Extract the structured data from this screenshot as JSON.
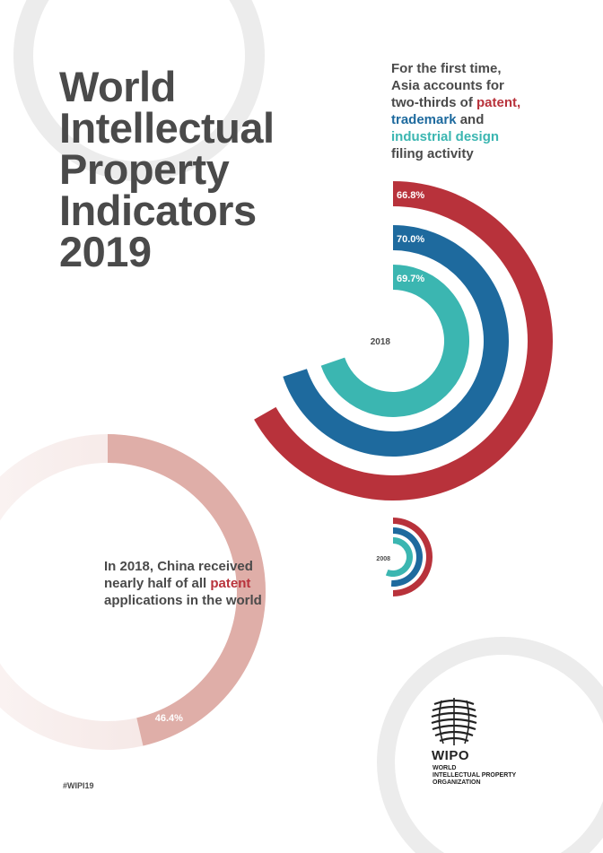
{
  "title": {
    "lines": [
      "World",
      "Intellectual",
      "Property",
      "Indicators",
      "2019"
    ]
  },
  "tagline": {
    "line1": "For the first time,",
    "line2": "Asia accounts for",
    "line3_prefix": "two-thirds of ",
    "patent": "patent,",
    "trademark": "trademark",
    "and": " and",
    "industrial_design": "industrial design",
    "last": "filing activity"
  },
  "china": {
    "line1": "In 2018, China received",
    "line2": "nearly half of all ",
    "patent": "patent",
    "line3": "applications in the world",
    "value_label": "46.4%",
    "value": 46.4
  },
  "hashtag": "#WIPI19",
  "wipo": {
    "name": "WIPO",
    "full": [
      "WORLD",
      "INTELLECTUAL PROPERTY",
      "ORGANIZATION"
    ]
  },
  "colors": {
    "patent": "#b8323b",
    "trademark": "#1e6a9e",
    "industrial_design": "#3bb6b1",
    "china": "#dfaea8",
    "text": "#4a4a4a",
    "decor": "#ececec"
  },
  "chart_data": [
    {
      "type": "pie",
      "subtype": "radial-bar",
      "center_label": "2018",
      "series": [
        {
          "name": "patent",
          "value": 66.8,
          "label": "66.8%"
        },
        {
          "name": "trademark",
          "value": 70.0,
          "label": "70.0%"
        },
        {
          "name": "industrial design",
          "value": 69.7,
          "label": "69.7%"
        }
      ]
    },
    {
      "type": "pie",
      "subtype": "radial-bar",
      "center_label": "2008",
      "series": [
        {
          "name": "patent",
          "value": 50
        },
        {
          "name": "trademark",
          "value": 51
        },
        {
          "name": "industrial design",
          "value": 56
        }
      ]
    },
    {
      "type": "pie",
      "subtype": "donut",
      "series": [
        {
          "name": "China",
          "value": 46.4,
          "label": "46.4%"
        }
      ]
    }
  ]
}
